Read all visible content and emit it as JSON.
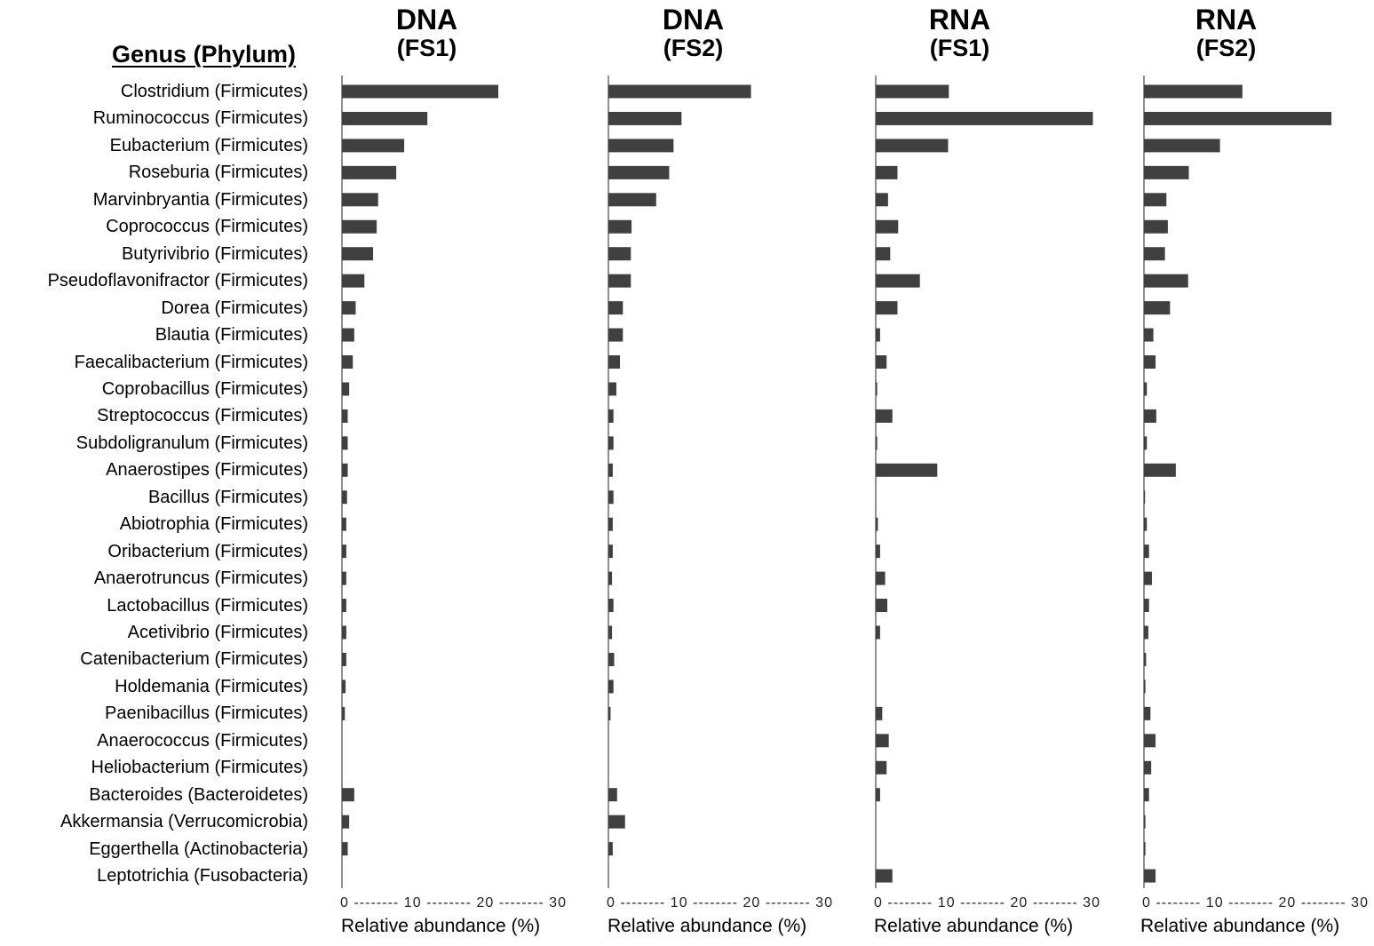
{
  "row_header": "Genus (Phylum)",
  "chart_data": {
    "type": "bar",
    "orientation": "horizontal",
    "categories": [
      "Clostridium (Firmicutes)",
      "Ruminococcus (Firmicutes)",
      "Eubacterium (Firmicutes)",
      "Roseburia (Firmicutes)",
      "Marvinbryantia (Firmicutes)",
      "Coprococcus (Firmicutes)",
      "Butyrivibrio (Firmicutes)",
      "Pseudoflavonifractor (Firmicutes)",
      "Dorea (Firmicutes)",
      "Blautia (Firmicutes)",
      "Faecalibacterium (Firmicutes)",
      "Coprobacillus (Firmicutes)",
      "Streptococcus (Firmicutes)",
      "Subdoligranulum (Firmicutes)",
      "Anaerostipes (Firmicutes)",
      "Bacillus (Firmicutes)",
      "Abiotrophia (Firmicutes)",
      "Oribacterium (Firmicutes)",
      "Anaerotruncus (Firmicutes)",
      "Lactobacillus (Firmicutes)",
      "Acetivibrio (Firmicutes)",
      "Catenibacterium (Firmicutes)",
      "Holdemania (Firmicutes)",
      "Paenibacillus (Firmicutes)",
      "Anaerococcus (Firmicutes)",
      "Heliobacterium (Firmicutes)",
      "Bacteroides (Bacteroidetes)",
      "Akkermansia (Verrucomicrobia)",
      "Eggerthella (Actinobacteria)",
      "Leptotrichia (Fusobacteria)"
    ],
    "xlim": [
      0,
      30
    ],
    "xticks": [
      0,
      10,
      20,
      30
    ],
    "tick_label": "0 -------- 10 -------- 20 -------- 30",
    "xlabel": "Relative abundance (%)",
    "bar_color": "#404040",
    "panels": [
      {
        "title": "DNA",
        "subtitle": "(FS1)",
        "values": [
          21.6,
          11.8,
          8.6,
          7.5,
          5.0,
          4.8,
          4.3,
          3.1,
          1.9,
          1.7,
          1.5,
          1.0,
          0.8,
          0.8,
          0.8,
          0.7,
          0.6,
          0.6,
          0.6,
          0.6,
          0.6,
          0.6,
          0.5,
          0.4,
          0,
          0,
          1.7,
          1.0,
          0.8,
          0
        ]
      },
      {
        "title": "DNA",
        "subtitle": "(FS2)",
        "values": [
          19.7,
          10.1,
          9.0,
          8.4,
          6.6,
          3.2,
          3.1,
          3.1,
          2.0,
          2.0,
          1.6,
          1.1,
          0.7,
          0.7,
          0.6,
          0.7,
          0.6,
          0.6,
          0.5,
          0.7,
          0.5,
          0.8,
          0.7,
          0.3,
          0,
          0,
          1.2,
          2.3,
          0.6,
          0
        ]
      },
      {
        "title": "RNA",
        "subtitle": "(FS1)",
        "values": [
          10.1,
          32.8,
          10.0,
          3.0,
          1.7,
          3.1,
          2.0,
          6.1,
          3.0,
          0.6,
          1.5,
          0.2,
          2.3,
          0.2,
          8.5,
          0,
          0.3,
          0.6,
          1.3,
          1.6,
          0.6,
          0,
          0,
          0.9,
          1.8,
          1.5,
          0.6,
          0,
          0,
          2.3
        ]
      },
      {
        "title": "RNA",
        "subtitle": "(FS2)",
        "values": [
          13.6,
          25.9,
          10.5,
          6.2,
          3.1,
          3.3,
          2.9,
          6.1,
          3.6,
          1.3,
          1.6,
          0.4,
          1.7,
          0.4,
          4.4,
          0.1,
          0.4,
          0.7,
          1.1,
          0.7,
          0.6,
          0.3,
          0.2,
          0.9,
          1.6,
          1.0,
          0.7,
          0.2,
          0.2,
          1.6
        ]
      }
    ]
  }
}
